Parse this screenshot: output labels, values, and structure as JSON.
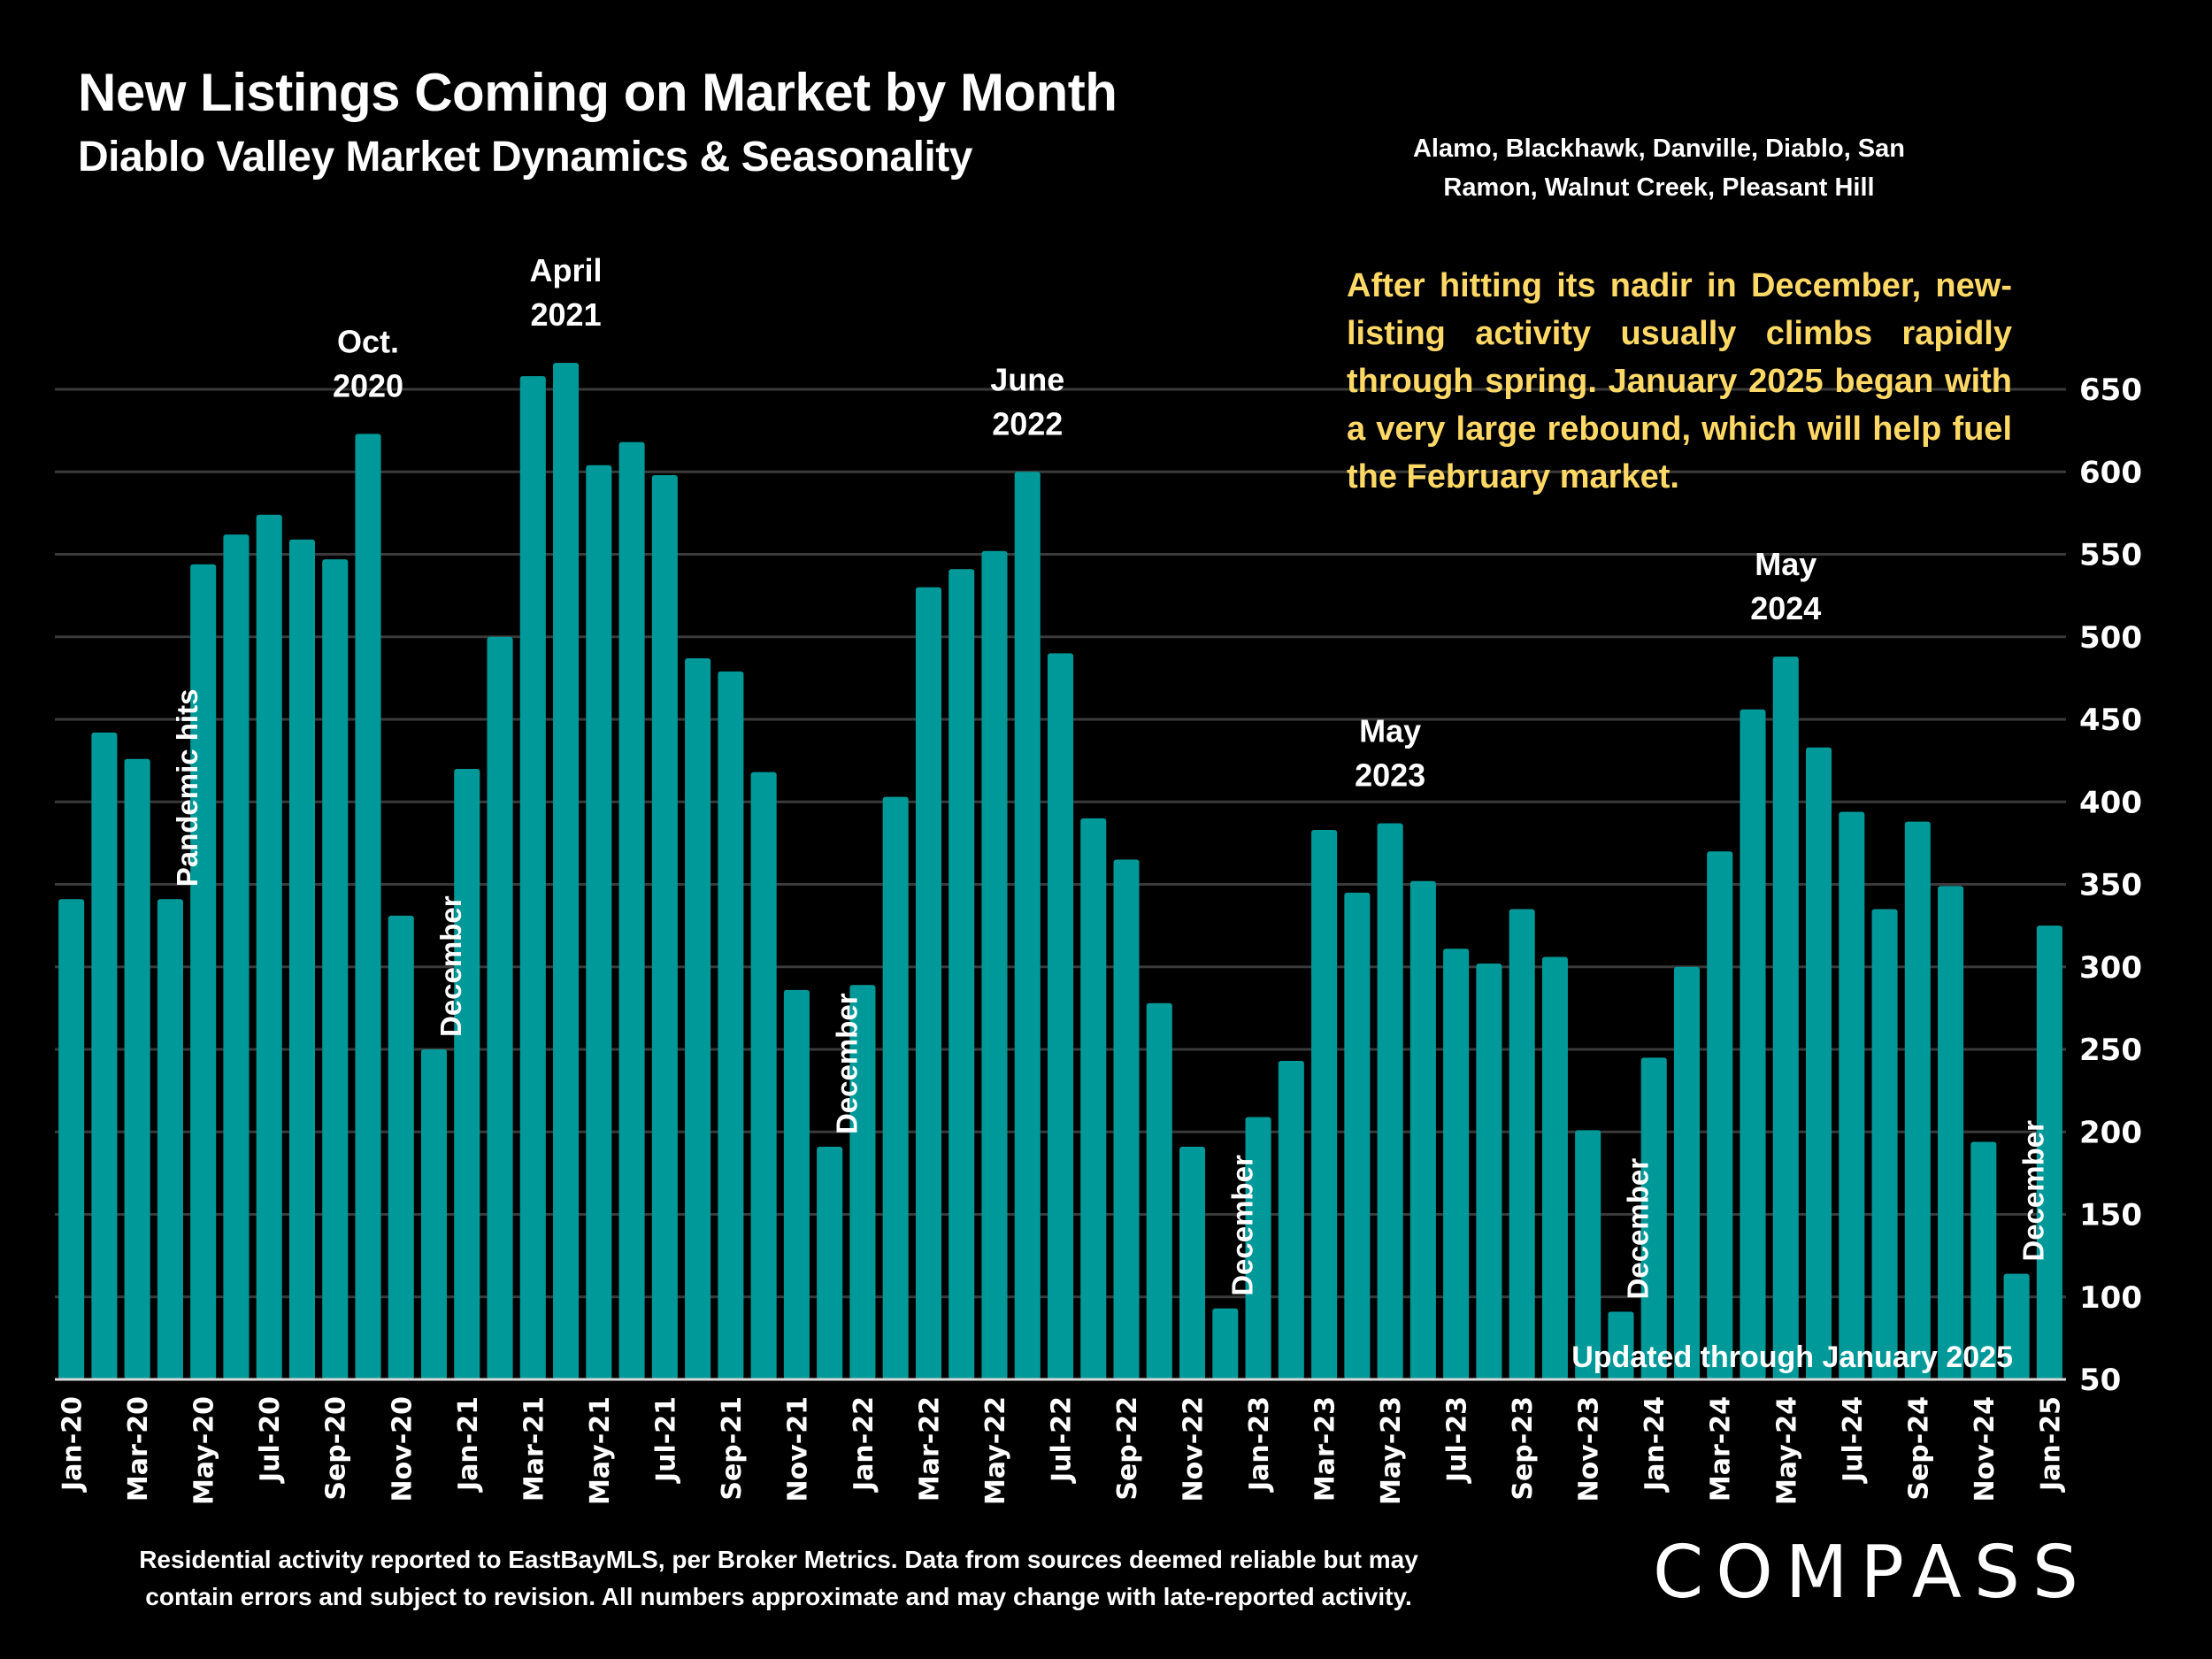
{
  "header": {
    "title": "New Listings Coming on Market by Month",
    "subtitle": "Diablo Valley Market Dynamics & Seasonality",
    "region_line1": "Alamo, Blackhawk, Danville, Diablo, San",
    "region_line2": "Ramon, Walnut Creek, Pleasant Hill"
  },
  "annotation": "After hitting its nadir in December, new-listing activity usually climbs rapidly through spring. January 2025 began with a very large rebound, which will help fuel the February market.",
  "footer": {
    "line1": "Residential activity reported to EastBayMLS, per Broker Metrics. Data from sources deemed reliable but may",
    "line2": "contain errors and subject to revision. All numbers approximate and may change with late-reported activity.",
    "logo": "COMPASS"
  },
  "colors": {
    "bar": "#009999",
    "background": "#000000",
    "annotation": "#FFD966",
    "gridline": "#333333"
  },
  "chart_data": {
    "type": "bar",
    "title": "New Listings Coming on Market by Month",
    "subtitle": "Diablo Valley Market Dynamics & Seasonality",
    "xlabel": "",
    "ylabel": "",
    "ylim": [
      50,
      650
    ],
    "yticks": [
      50,
      100,
      150,
      200,
      250,
      300,
      350,
      400,
      450,
      500,
      550,
      600,
      650
    ],
    "y_axis_position": "right",
    "grid": true,
    "categories": [
      "Jan-20",
      "Feb-20",
      "Mar-20",
      "Apr-20",
      "May-20",
      "Jun-20",
      "Jul-20",
      "Aug-20",
      "Sep-20",
      "Oct-20",
      "Nov-20",
      "Dec-20",
      "Jan-21",
      "Feb-21",
      "Mar-21",
      "Apr-21",
      "May-21",
      "Jun-21",
      "Jul-21",
      "Aug-21",
      "Sep-21",
      "Oct-21",
      "Nov-21",
      "Dec-21",
      "Jan-22",
      "Feb-22",
      "Mar-22",
      "Apr-22",
      "May-22",
      "Jun-22",
      "Jul-22",
      "Aug-22",
      "Sep-22",
      "Oct-22",
      "Nov-22",
      "Dec-22",
      "Jan-23",
      "Feb-23",
      "Mar-23",
      "Apr-23",
      "May-23",
      "Jun-23",
      "Jul-23",
      "Aug-23",
      "Sep-23",
      "Oct-23",
      "Nov-23",
      "Dec-23",
      "Jan-24",
      "Feb-24",
      "Mar-24",
      "Apr-24",
      "May-24",
      "Jun-24",
      "Jul-24",
      "Aug-24",
      "Sep-24",
      "Oct-24",
      "Nov-24",
      "Dec-24",
      "Jan-25"
    ],
    "tick_labels_shown": [
      "Jan-20",
      "Mar-20",
      "May-20",
      "Jul-20",
      "Sep-20",
      "Nov-20",
      "Jan-21",
      "Mar-21",
      "May-21",
      "Jul-21",
      "Sep-21",
      "Nov-21",
      "Jan-22",
      "Mar-22",
      "May-22",
      "Jul-22",
      "Sep-22",
      "Nov-22",
      "Jan-23",
      "Mar-23",
      "May-23",
      "Jul-23",
      "Sep-23",
      "Nov-23",
      "Jan-24",
      "Mar-24",
      "May-24",
      "Jul-24",
      "Sep-24",
      "Nov-24",
      "Jan-25"
    ],
    "values": [
      341,
      442,
      426,
      341,
      544,
      562,
      574,
      559,
      547,
      623,
      331,
      250,
      420,
      500,
      658,
      666,
      604,
      618,
      598,
      487,
      479,
      418,
      286,
      191,
      289,
      403,
      530,
      541,
      552,
      600,
      490,
      390,
      365,
      278,
      191,
      93,
      209,
      243,
      383,
      345,
      387,
      352,
      311,
      302,
      335,
      306,
      201,
      91,
      245,
      300,
      370,
      456,
      488,
      433,
      394,
      335,
      388,
      349,
      194,
      114,
      325
    ],
    "annotations": [
      {
        "text": "Pandemic hits",
        "index": 3,
        "orientation": "vertical"
      },
      {
        "text": "Oct.\n2020",
        "index": 9,
        "orientation": "horizontal"
      },
      {
        "text": "December",
        "index": 11,
        "orientation": "vertical"
      },
      {
        "text": "April\n2021",
        "index": 15,
        "orientation": "horizontal"
      },
      {
        "text": "December",
        "index": 23,
        "orientation": "vertical"
      },
      {
        "text": "June\n2022",
        "index": 29,
        "orientation": "horizontal"
      },
      {
        "text": "December",
        "index": 35,
        "orientation": "vertical"
      },
      {
        "text": "May\n2023",
        "index": 40,
        "orientation": "horizontal"
      },
      {
        "text": "December",
        "index": 47,
        "orientation": "vertical"
      },
      {
        "text": "May\n2024",
        "index": 52,
        "orientation": "horizontal"
      },
      {
        "text": "December",
        "index": 59,
        "orientation": "vertical"
      }
    ],
    "note": "Updated through January 2025"
  }
}
